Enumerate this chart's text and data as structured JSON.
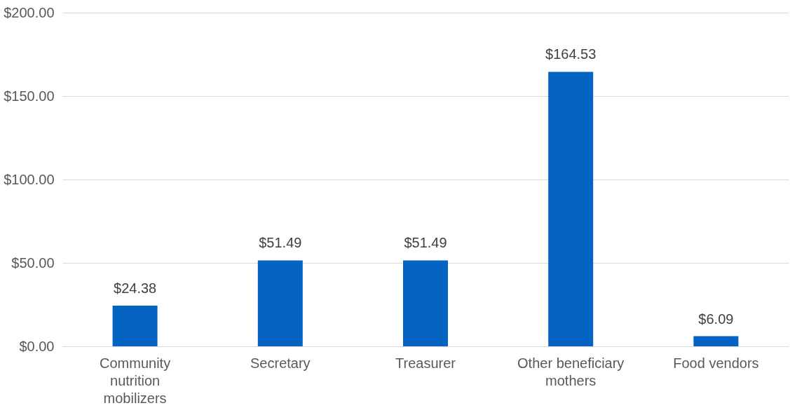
{
  "chart_data": {
    "type": "bar",
    "categories": [
      "Community nutrition mobilizers",
      "Secretary",
      "Treasurer",
      "Other beneficiary mothers",
      "Food vendors"
    ],
    "values": [
      24.38,
      51.49,
      51.49,
      164.53,
      6.09
    ],
    "value_labels": [
      "$24.38",
      "$51.49",
      "$51.49",
      "$164.53",
      "$6.09"
    ],
    "color": "#0563c1",
    "ylim": [
      0,
      200
    ],
    "yticks": [
      {
        "value": 0,
        "label": "$0.00"
      },
      {
        "value": 50,
        "label": "$50.00"
      },
      {
        "value": 100,
        "label": "$100.00"
      },
      {
        "value": 150,
        "label": "$150.00"
      },
      {
        "value": 200,
        "label": "$200.00"
      }
    ],
    "grid": "y"
  }
}
